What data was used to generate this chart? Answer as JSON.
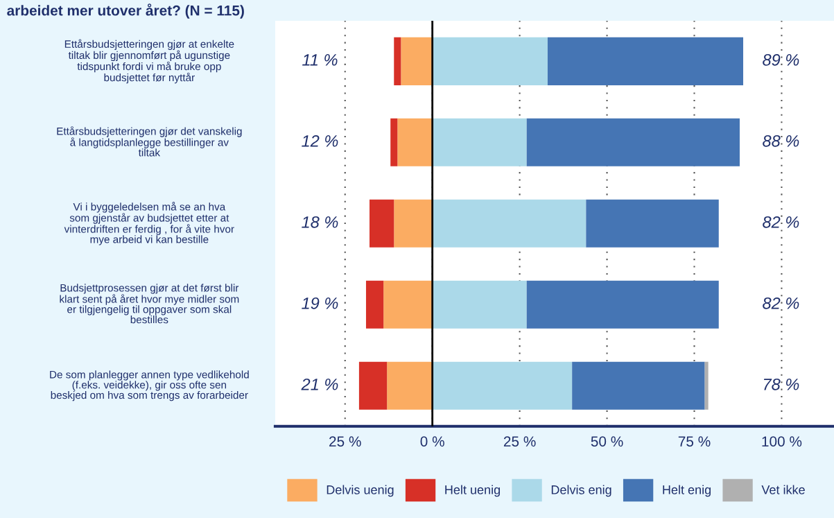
{
  "chart_data": {
    "type": "bar",
    "orientation": "horizontal",
    "stacked": true,
    "title": "arbeidet mer utover året? (N = 115)",
    "categories": [
      "Ettårsbudsjetteringen gjør at enkelte\ntiltak blir gjennomført på ugunstige\ntidspunkt fordi vi må bruke opp\nbudsjettet før nyttår",
      "Ettårsbudsjetteringen gjør det vanskelig\nå langtidsplanlegge bestillinger av\ntiltak",
      "Vi i byggeledelsen må se an hva\nsom gjenstår av budsjettet etter at\nvinterdriften er ferdig , for å vite hvor\nmye arbeid vi kan bestille",
      "Budsjettprosessen gjør at det først blir\nklart sent på året hvor mye midler som\ner tilgjengelig til oppgaver som skal\nbestilles",
      "De som planlegger annen type vedlikehold\n(f.eks. veidekke), gir oss ofte sen\nbeskjed om hva som trengs av forarbeider"
    ],
    "series": [
      {
        "name": "Delvis uenig",
        "color": "#fbac62",
        "values": [
          -9,
          -10,
          -11,
          -14,
          -13
        ]
      },
      {
        "name": "Helt uenig",
        "color": "#d73027",
        "values": [
          -2,
          -2,
          -7,
          -5,
          -8
        ]
      },
      {
        "name": "Delvis enig",
        "color": "#abd9e9",
        "values": [
          33,
          27,
          44,
          27,
          40
        ]
      },
      {
        "name": "Helt enig",
        "color": "#4575b4",
        "values": [
          56,
          61,
          38,
          55,
          38
        ]
      },
      {
        "name": "Vet ikke",
        "color": "#b0b0b0",
        "values": [
          0,
          0,
          0,
          0,
          1
        ]
      }
    ],
    "xlim": [
      -45,
      115
    ],
    "xticks": [
      {
        "value": -25,
        "label": "25 %"
      },
      {
        "value": 0,
        "label": "0 %"
      },
      {
        "value": 25,
        "label": "25 %"
      },
      {
        "value": 50,
        "label": "50 %"
      },
      {
        "value": 75,
        "label": "75 %"
      },
      {
        "value": 100,
        "label": "100 %"
      }
    ],
    "grid": "x",
    "ref_lines": [
      {
        "axis": "x",
        "value": 0,
        "color": "#000000",
        "line_style": "solid"
      }
    ],
    "annotations": [
      "11 %",
      "89 %",
      "12 %",
      "88 %",
      "18 %",
      "82 %",
      "19 %",
      "82 %",
      "21 %",
      "78 %"
    ],
    "legend": "bottom"
  }
}
